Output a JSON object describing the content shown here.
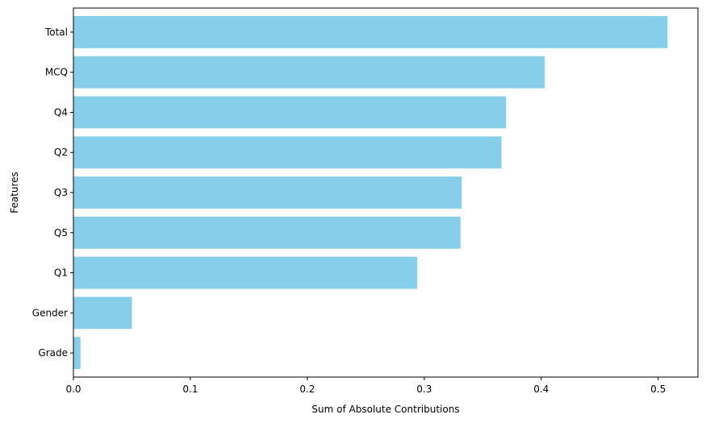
{
  "chart_data": {
    "type": "bar",
    "orientation": "horizontal",
    "categories": [
      "Total",
      "MCQ",
      "Q4",
      "Q2",
      "Q3",
      "Q5",
      "Q1",
      "Gender",
      "Grade"
    ],
    "values": [
      0.508,
      0.403,
      0.37,
      0.366,
      0.332,
      0.331,
      0.294,
      0.05,
      0.006
    ],
    "title": "",
    "xlabel": "Sum of Absolute Contributions",
    "ylabel": "Features",
    "xlim": [
      0,
      0.534
    ],
    "xticks": [
      0.0,
      0.1,
      0.2,
      0.3,
      0.4,
      0.5
    ],
    "xtick_labels": [
      "0.0",
      "0.1",
      "0.2",
      "0.3",
      "0.4",
      "0.5"
    ],
    "grid": false,
    "bar_color": "#87ceeb"
  }
}
